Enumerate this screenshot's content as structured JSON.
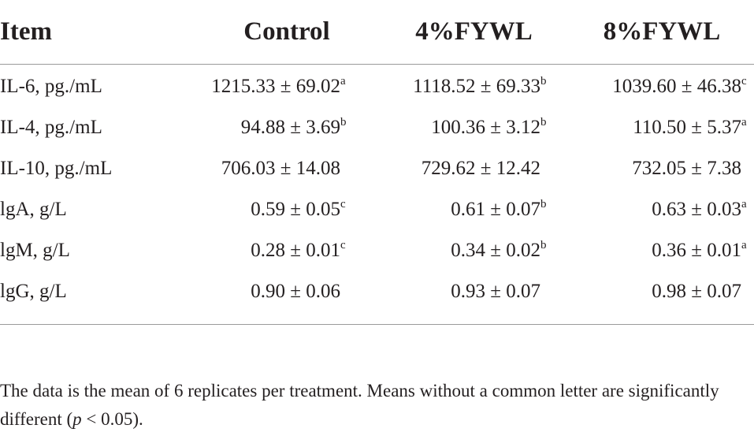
{
  "table": {
    "headers": [
      "Item",
      "Control",
      "4%FYWL",
      "8%FYWL"
    ],
    "rows": [
      {
        "item": "IL-6, pg./mL",
        "control": {
          "value": "1215.33 ± 69.02",
          "sup": "a"
        },
        "fy4": {
          "value": "1118.52 ± 69.33",
          "sup": "b"
        },
        "fy8": {
          "value": "1039.60 ± 46.38",
          "sup": "c"
        }
      },
      {
        "item": "IL-4, pg./mL",
        "control": {
          "value": "94.88 ± 3.69",
          "sup": "b"
        },
        "fy4": {
          "value": "100.36 ± 3.12",
          "sup": "b"
        },
        "fy8": {
          "value": "110.50 ± 5.37",
          "sup": "a"
        }
      },
      {
        "item": "IL-10, pg./mL",
        "control": {
          "value": "706.03 ± 14.08",
          "sup": ""
        },
        "fy4": {
          "value": "729.62 ± 12.42",
          "sup": ""
        },
        "fy8": {
          "value": "732.05 ± 7.38",
          "sup": ""
        }
      },
      {
        "item": "lgA, g/L",
        "control": {
          "value": "0.59 ± 0.05",
          "sup": "c"
        },
        "fy4": {
          "value": "0.61 ± 0.07",
          "sup": "b"
        },
        "fy8": {
          "value": "0.63 ± 0.03",
          "sup": "a"
        }
      },
      {
        "item": "lgM, g/L",
        "control": {
          "value": "0.28 ± 0.01",
          "sup": "c"
        },
        "fy4": {
          "value": "0.34 ± 0.02",
          "sup": "b"
        },
        "fy8": {
          "value": "0.36 ± 0.01",
          "sup": "a"
        }
      },
      {
        "item": "lgG, g/L",
        "control": {
          "value": "0.90 ± 0.06",
          "sup": ""
        },
        "fy4": {
          "value": "0.93 ± 0.07",
          "sup": ""
        },
        "fy8": {
          "value": "0.98 ± 0.07",
          "sup": ""
        }
      }
    ]
  },
  "footnote": {
    "text_before": "The data is the mean of 6 replicates per treatment. Means without a common letter are significantly different (",
    "p_symbol": "p",
    "text_after": " < 0.05)."
  }
}
